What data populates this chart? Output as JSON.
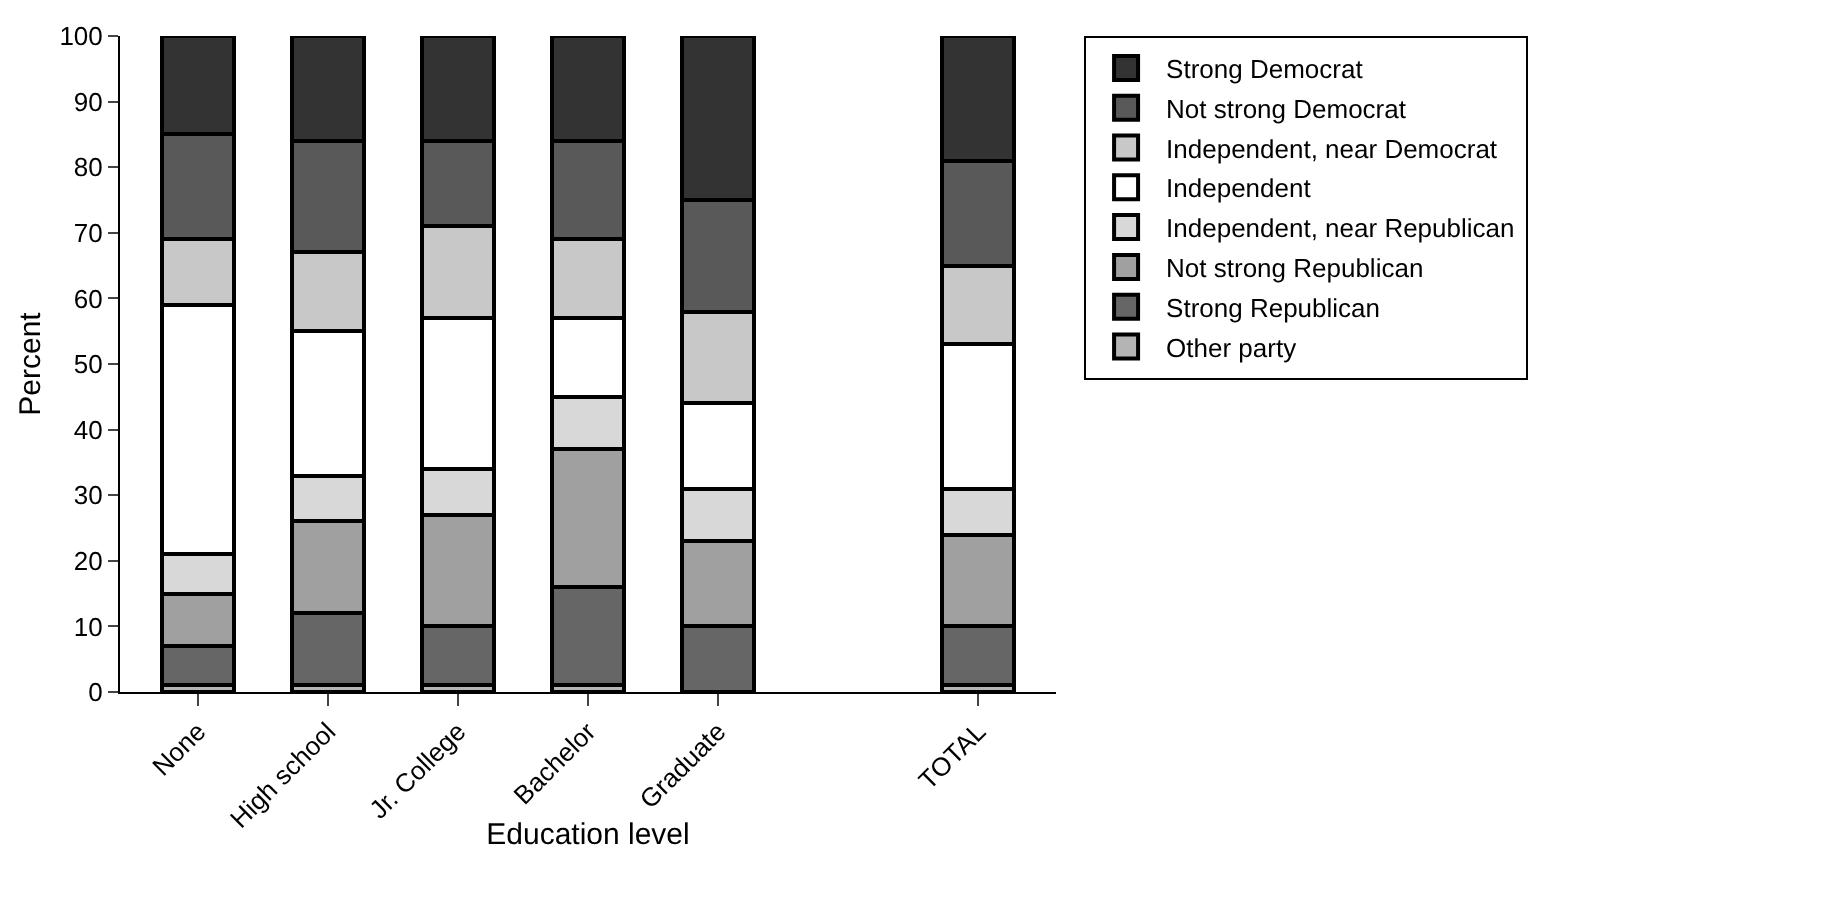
{
  "chart_data": {
    "type": "bar",
    "stacked": true,
    "xlabel": "Education level",
    "ylabel": "Percent",
    "categories": [
      "None",
      "High school",
      "Jr. College",
      "Bachelor",
      "Graduate",
      null,
      "TOTAL"
    ],
    "series": [
      {
        "name": "Other party",
        "color": "#b4b4b4",
        "values": [
          1,
          1,
          1,
          1,
          0,
          null,
          1
        ]
      },
      {
        "name": "Strong Republican",
        "color": "#666666",
        "values": [
          6,
          11,
          9,
          15,
          10,
          null,
          9
        ]
      },
      {
        "name": "Not strong Republican",
        "color": "#a0a0a0",
        "values": [
          8,
          14,
          17,
          21,
          13,
          null,
          14
        ]
      },
      {
        "name": "Independent, near Republican",
        "color": "#d8d8d8",
        "values": [
          6,
          7,
          7,
          8,
          8,
          null,
          7
        ]
      },
      {
        "name": "Independent",
        "color": "#ffffff",
        "values": [
          38,
          22,
          23,
          12,
          13,
          null,
          22
        ]
      },
      {
        "name": "Independent, near Democrat",
        "color": "#c8c8c8",
        "values": [
          10,
          12,
          14,
          12,
          14,
          null,
          12
        ]
      },
      {
        "name": "Not strong Democrat",
        "color": "#595959",
        "values": [
          16,
          17,
          13,
          15,
          17,
          null,
          16
        ]
      },
      {
        "name": "Strong Democrat",
        "color": "#333333",
        "values": [
          15,
          16,
          16,
          16,
          25,
          null,
          19
        ]
      }
    ],
    "ylim": [
      0,
      100
    ],
    "yticks": [
      0,
      10,
      20,
      30,
      40,
      50,
      60,
      70,
      80,
      90,
      100
    ],
    "grid": false,
    "legend": "right"
  }
}
